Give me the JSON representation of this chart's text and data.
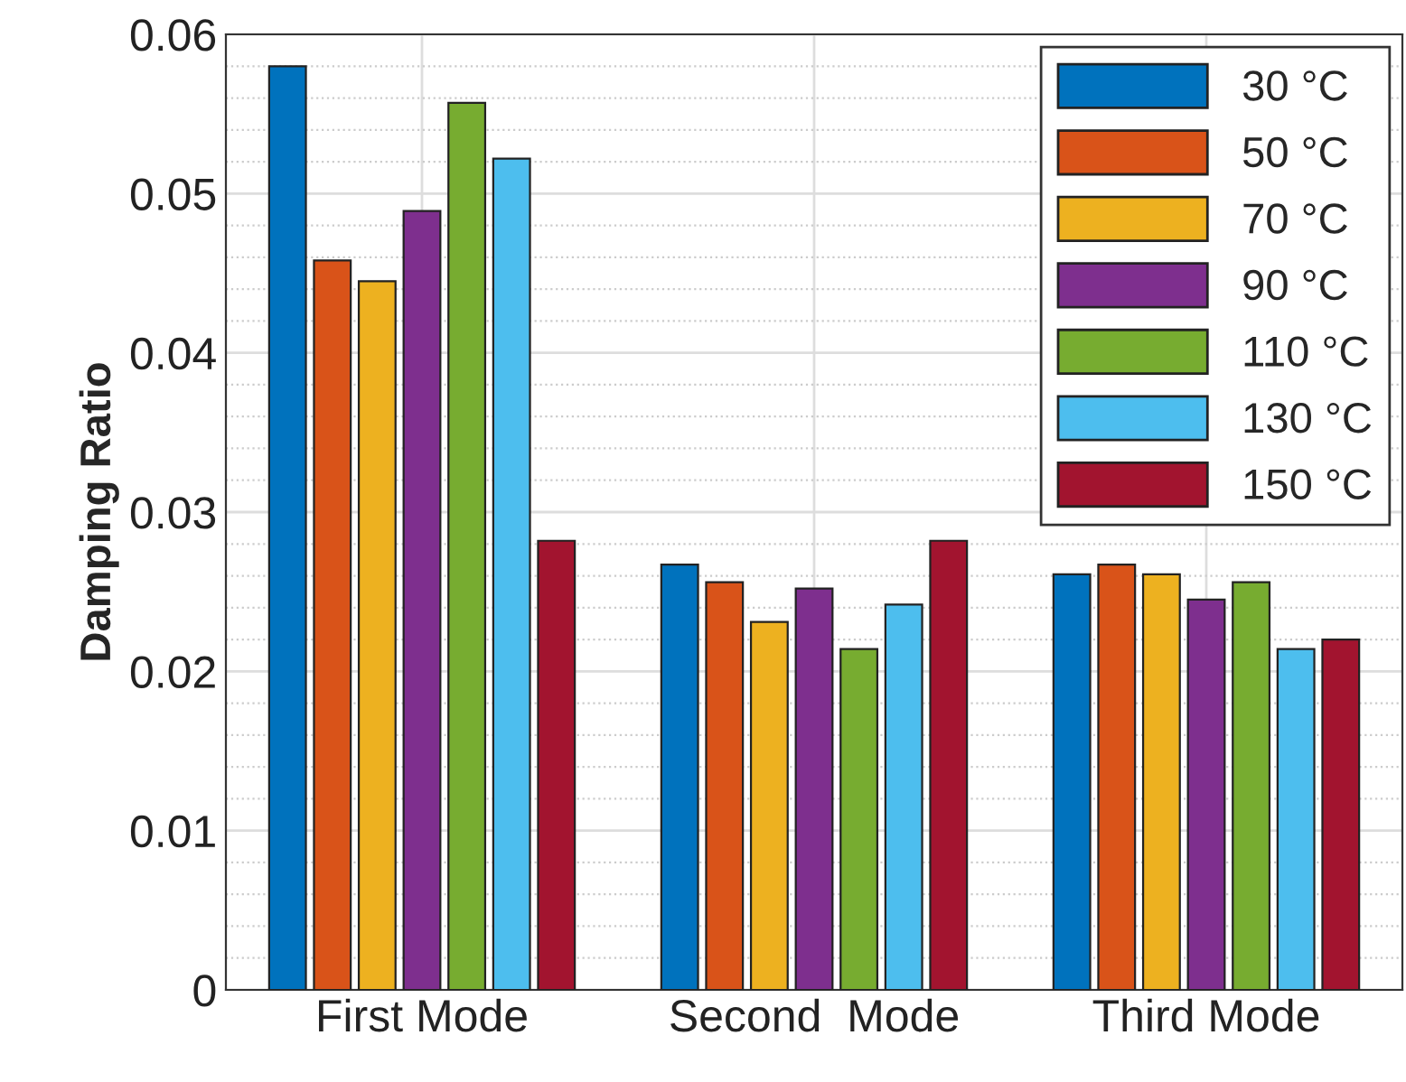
{
  "chart_data": {
    "type": "bar",
    "ylabel": "Damping Ratio",
    "categories": [
      "First Mode",
      "Second  Mode",
      "Third Mode"
    ],
    "series": [
      {
        "name": "30 °C",
        "color": "#0072bd",
        "values": [
          0.058,
          0.0267,
          0.0261
        ]
      },
      {
        "name": "50 °C",
        "color": "#d95319",
        "values": [
          0.0458,
          0.0256,
          0.0267
        ]
      },
      {
        "name": "70 °C",
        "color": "#edb120",
        "values": [
          0.0445,
          0.0231,
          0.0261
        ]
      },
      {
        "name": "90 °C",
        "color": "#7e2f8e",
        "values": [
          0.0489,
          0.0252,
          0.0245
        ]
      },
      {
        "name": "110 °C",
        "color": "#77ac30",
        "values": [
          0.0557,
          0.0214,
          0.0256
        ]
      },
      {
        "name": "130 °C",
        "color": "#4dbeee",
        "values": [
          0.0522,
          0.0242,
          0.0214
        ]
      },
      {
        "name": "150 °C",
        "color": "#a2142f",
        "values": [
          0.0282,
          0.0282,
          0.022
        ]
      }
    ],
    "ylim": [
      0,
      0.06
    ],
    "yticks": [
      0,
      0.01,
      0.02,
      0.03,
      0.04,
      0.05,
      0.06
    ],
    "grid": true,
    "legend": "top right"
  }
}
